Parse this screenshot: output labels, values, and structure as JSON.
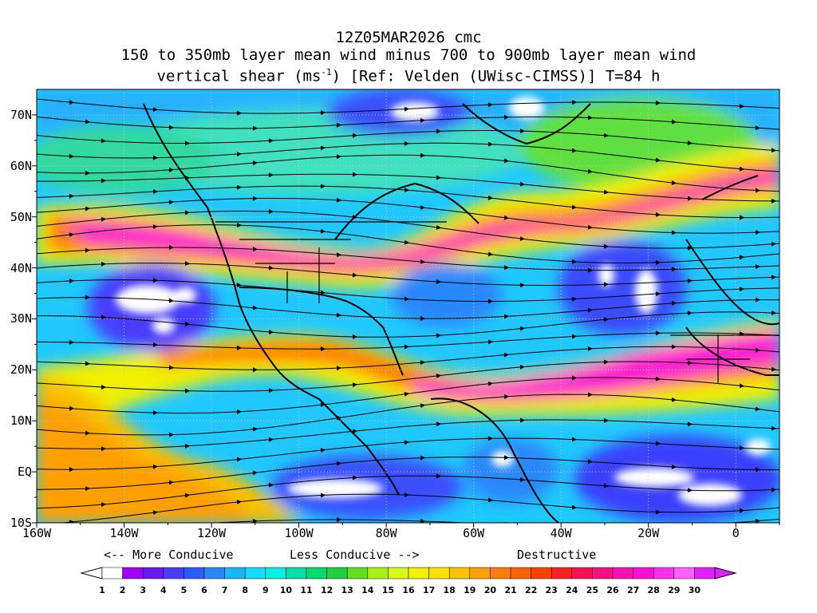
{
  "title": {
    "line1": "12Z05MAR2026 cmc",
    "line2": "150 to 350mb layer mean wind minus 700 to 900mb layer mean wind",
    "line3_pre": "vertical shear (ms",
    "line3_sup": "-1",
    "line3_post": ") [Ref: Velden (UWisc-CIMSS)] T=84 h"
  },
  "map": {
    "lat_labels": [
      "70N",
      "60N",
      "50N",
      "40N",
      "30N",
      "20N",
      "10N",
      "EQ",
      "10S"
    ],
    "lon_labels": [
      "160W",
      "140W",
      "120W",
      "100W",
      "80W",
      "60W",
      "40W",
      "20W",
      "0"
    ],
    "lat_range": [
      -10,
      75
    ],
    "lon_range": [
      -160,
      10
    ]
  },
  "legend": {
    "more_conducive": "<-- More Conducive",
    "less_conducive": "Less Conducive -->",
    "destructive": "Destructive",
    "levels": [
      "1",
      "2",
      "3",
      "4",
      "5",
      "6",
      "7",
      "8",
      "9",
      "10",
      "11",
      "12",
      "13",
      "14",
      "15",
      "16",
      "17",
      "18",
      "19",
      "20",
      "21",
      "22",
      "23",
      "24",
      "25",
      "26",
      "27",
      "28",
      "29",
      "30"
    ],
    "colors": [
      "#ffffff",
      "#a000ff",
      "#6a18f0",
      "#4a3cff",
      "#2a5cff",
      "#2a88ff",
      "#1ab4ff",
      "#18d8ff",
      "#00f0e8",
      "#00e0a8",
      "#00d870",
      "#20d040",
      "#60e020",
      "#a8f018",
      "#d8f818",
      "#f0f000",
      "#ffe000",
      "#ffc000",
      "#ffa000",
      "#ff8000",
      "#ff6000",
      "#ff4000",
      "#ff2020",
      "#ff1050",
      "#ff1080",
      "#ff10b0",
      "#ff10d8",
      "#ff30f0",
      "#ff60ff",
      "#e020ff"
    ]
  }
}
